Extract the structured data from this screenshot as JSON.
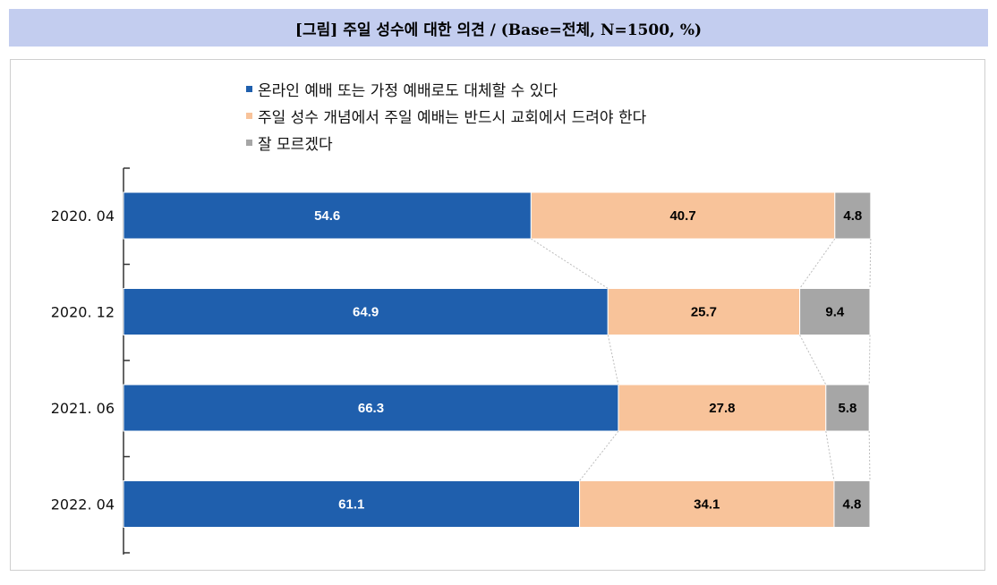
{
  "header": {
    "title": "[그림] 주일 성수에 대한 의견 / (Base=전체, N=1500, %)"
  },
  "chart_data": {
    "type": "bar",
    "orientation": "horizontal",
    "stacked": true,
    "percent_stacked": true,
    "categories": [
      "2020. 04",
      "2020. 12",
      "2021. 06",
      "2022. 04"
    ],
    "series": [
      {
        "name": "온라인 예배 또는 가정 예배로도 대체할 수 있다",
        "color": "#1f5fad",
        "label_color": "#ffffff",
        "values": [
          54.6,
          64.9,
          66.3,
          61.1
        ]
      },
      {
        "name": "주일 성수 개념에서 주일 예배는 반드시 교회에서 드려야 한다",
        "color": "#f8c39a",
        "label_color": "#000000",
        "values": [
          40.7,
          25.7,
          27.8,
          34.1
        ]
      },
      {
        "name": "잘 모르겠다",
        "color": "#a6a6a6",
        "label_color": "#000000",
        "values": [
          4.8,
          9.4,
          5.8,
          4.8
        ]
      }
    ],
    "legend_position": "top",
    "series_connector_lines": true,
    "grid": false
  }
}
